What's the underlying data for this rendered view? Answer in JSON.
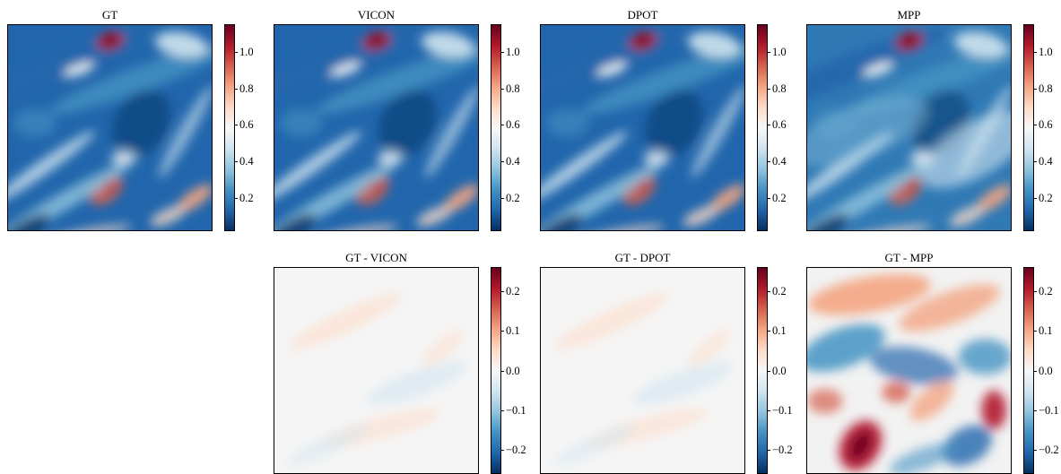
{
  "colors": {
    "rdbu_stops": [
      "#67001f",
      "#b2182b",
      "#d6604d",
      "#f4a582",
      "#fddbc7",
      "#f7f7f7",
      "#d1e5f0",
      "#92c5de",
      "#4393c3",
      "#2166ac",
      "#053061"
    ]
  },
  "chart_data": [
    {
      "type": "heatmap",
      "title": "GT",
      "colorbar_ticks": [
        "1.0",
        "0.8",
        "0.6",
        "0.4",
        "0.2"
      ],
      "colorbar_values": [
        1.0,
        0.8,
        0.6,
        0.4,
        0.2
      ],
      "vlim": [
        0.02,
        1.15
      ]
    },
    {
      "type": "heatmap",
      "title": "VICON",
      "colorbar_ticks": [
        "1.0",
        "0.8",
        "0.6",
        "0.4",
        "0.2"
      ],
      "colorbar_values": [
        1.0,
        0.8,
        0.6,
        0.4,
        0.2
      ],
      "vlim": [
        0.02,
        1.15
      ]
    },
    {
      "type": "heatmap",
      "title": "DPOT",
      "colorbar_ticks": [
        "1.0",
        "0.8",
        "0.6",
        "0.4",
        "0.2"
      ],
      "colorbar_values": [
        1.0,
        0.8,
        0.6,
        0.4,
        0.2
      ],
      "vlim": [
        0.02,
        1.15
      ]
    },
    {
      "type": "heatmap",
      "title": "MPP",
      "colorbar_ticks": [
        "1.0",
        "0.8",
        "0.6",
        "0.4",
        "0.2"
      ],
      "colorbar_values": [
        1.0,
        0.8,
        0.6,
        0.4,
        0.2
      ],
      "vlim": [
        0.02,
        1.15
      ]
    },
    {
      "type": "heatmap",
      "title": "GT - VICON",
      "colorbar_ticks": [
        "0.2",
        "0.1",
        "0.0",
        "−0.1",
        "−0.2"
      ],
      "colorbar_values": [
        0.2,
        0.1,
        0.0,
        -0.1,
        -0.2
      ],
      "vlim": [
        -0.26,
        0.26
      ]
    },
    {
      "type": "heatmap",
      "title": "GT - DPOT",
      "colorbar_ticks": [
        "0.2",
        "0.1",
        "0.0",
        "−0.1",
        "−0.2"
      ],
      "colorbar_values": [
        0.2,
        0.1,
        0.0,
        -0.1,
        -0.2
      ],
      "vlim": [
        -0.26,
        0.26
      ]
    },
    {
      "type": "heatmap",
      "title": "GT - MPP",
      "colorbar_ticks": [
        "0.2",
        "0.1",
        "0.0",
        "−0.1",
        "−0.2"
      ],
      "colorbar_values": [
        0.2,
        0.1,
        0.0,
        -0.1,
        -0.2
      ],
      "vlim": [
        -0.26,
        0.26
      ]
    }
  ]
}
